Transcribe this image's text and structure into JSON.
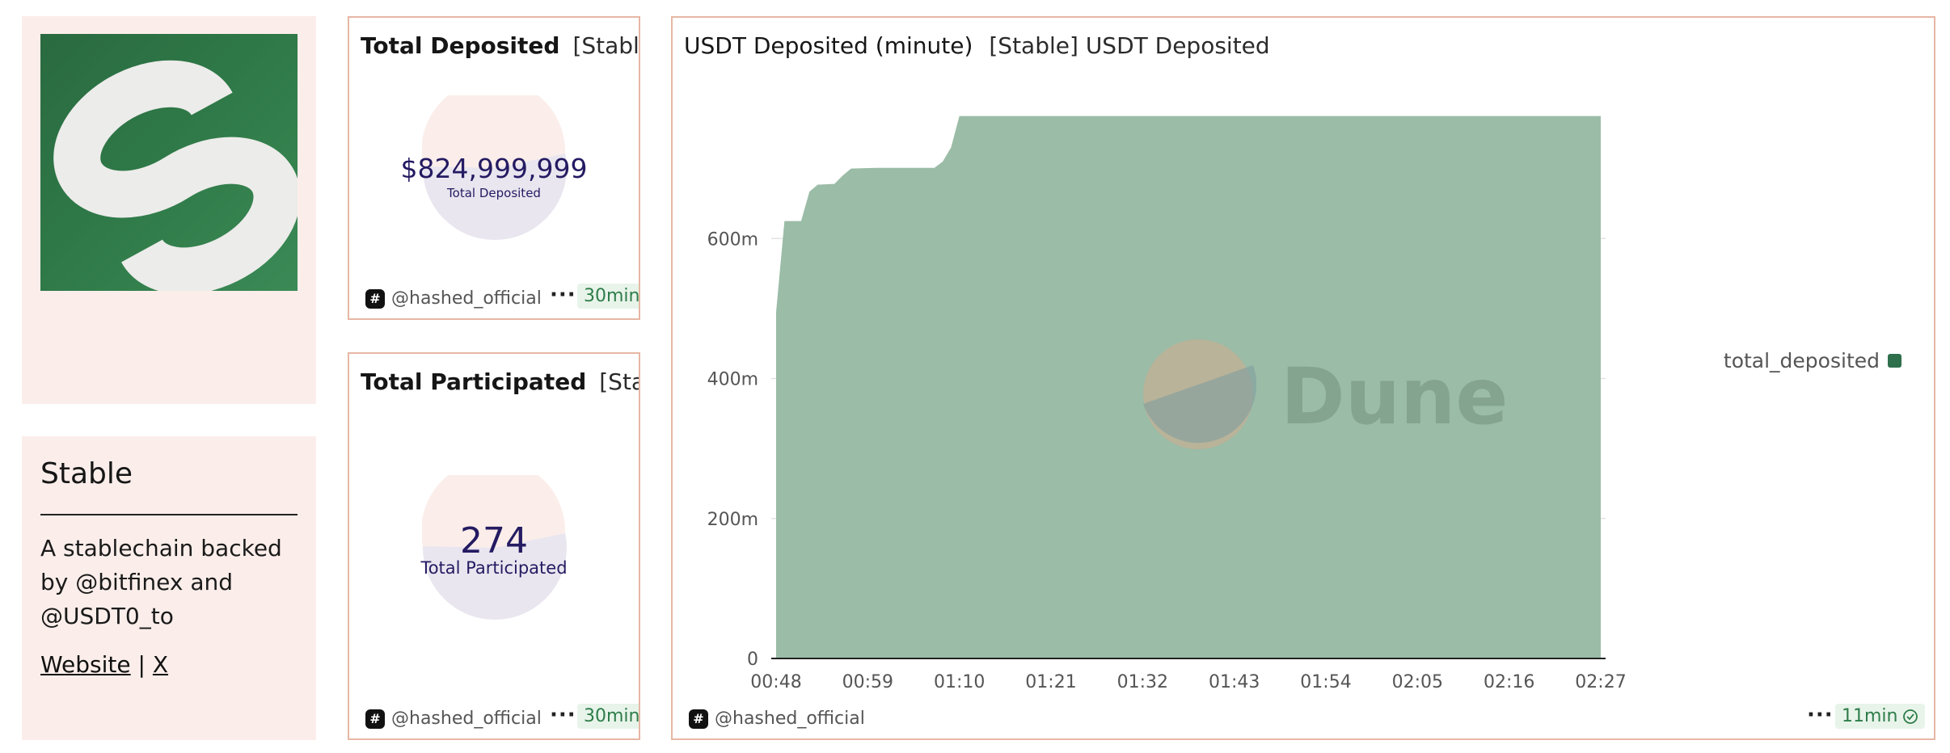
{
  "about": {
    "title": "Stable",
    "description": "A stablechain backed by @bitfinex and @USDT0_to",
    "link_website": "Website",
    "separator": "|",
    "link_x": "X"
  },
  "deposited_card": {
    "title": "Total Deposited",
    "subtitle": "[Stabl…",
    "value": "$824,999,999",
    "label": "Total Deposited",
    "author": "@hashed_official",
    "refresh": "30min"
  },
  "participated_card": {
    "title": "Total Participated",
    "subtitle": "[Sta…",
    "value": "274",
    "label": "Total Participated",
    "author": "@hashed_official",
    "refresh": "30min"
  },
  "chart_card": {
    "title": "USDT Deposited (minute)",
    "subtitle": "[Stable] USDT Deposited",
    "author": "@hashed_official",
    "refresh": "11min",
    "watermark": "Dune"
  },
  "chart_data": {
    "type": "area",
    "title": "USDT Deposited (minute)",
    "xlabel": "",
    "ylabel": "",
    "x_ticks": [
      "00:48",
      "00:59",
      "01:10",
      "01:21",
      "01:32",
      "01:43",
      "01:54",
      "02:05",
      "02:16",
      "02:27"
    ],
    "y_ticks": [
      {
        "value": 0,
        "label": "0"
      },
      {
        "value": 200000000,
        "label": "200m"
      },
      {
        "value": 400000000,
        "label": "400m"
      },
      {
        "value": 600000000,
        "label": "600m"
      }
    ],
    "ylim": [
      0,
      800000000
    ],
    "grid": true,
    "legend_position": "right",
    "color": "#2e6f4c",
    "series": [
      {
        "name": "total_deposited",
        "points": [
          {
            "x": "00:48",
            "y": 495000000
          },
          {
            "x": "00:49",
            "y": 625000000
          },
          {
            "x": "00:51",
            "y": 625000000
          },
          {
            "x": "00:52",
            "y": 667000000
          },
          {
            "x": "00:53",
            "y": 677000000
          },
          {
            "x": "00:55",
            "y": 678000000
          },
          {
            "x": "00:56",
            "y": 690000000
          },
          {
            "x": "00:57",
            "y": 700000000
          },
          {
            "x": "01:00",
            "y": 701000000
          },
          {
            "x": "01:03",
            "y": 701000000
          },
          {
            "x": "01:07",
            "y": 701000000
          },
          {
            "x": "01:08",
            "y": 710000000
          },
          {
            "x": "01:09",
            "y": 730000000
          },
          {
            "x": "01:10",
            "y": 775000000
          },
          {
            "x": "01:20",
            "y": 775000000
          },
          {
            "x": "01:40",
            "y": 775000000
          },
          {
            "x": "02:00",
            "y": 775000000
          },
          {
            "x": "02:27",
            "y": 775000000
          }
        ]
      }
    ]
  }
}
